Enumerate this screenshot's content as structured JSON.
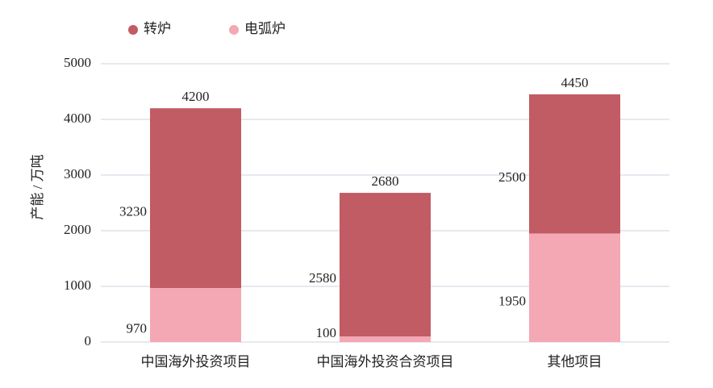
{
  "chart_data": {
    "type": "bar",
    "stacked": true,
    "y_label": "产能 / 万吨",
    "categories": [
      "中国海外投资项目",
      "中国海外投资合资项目",
      "其他项目"
    ],
    "series": [
      {
        "name": "电弧炉",
        "color": "#f4a8b4",
        "values": [
          970,
          100,
          1950
        ]
      },
      {
        "name": "转炉",
        "color": "#c15b64",
        "values": [
          3230,
          2580,
          2500
        ]
      }
    ],
    "totals": [
      4200,
      2680,
      4450
    ],
    "ylim": [
      0,
      5000
    ],
    "yticks": [
      0,
      1000,
      2000,
      3000,
      4000,
      5000
    ],
    "grid": true
  }
}
